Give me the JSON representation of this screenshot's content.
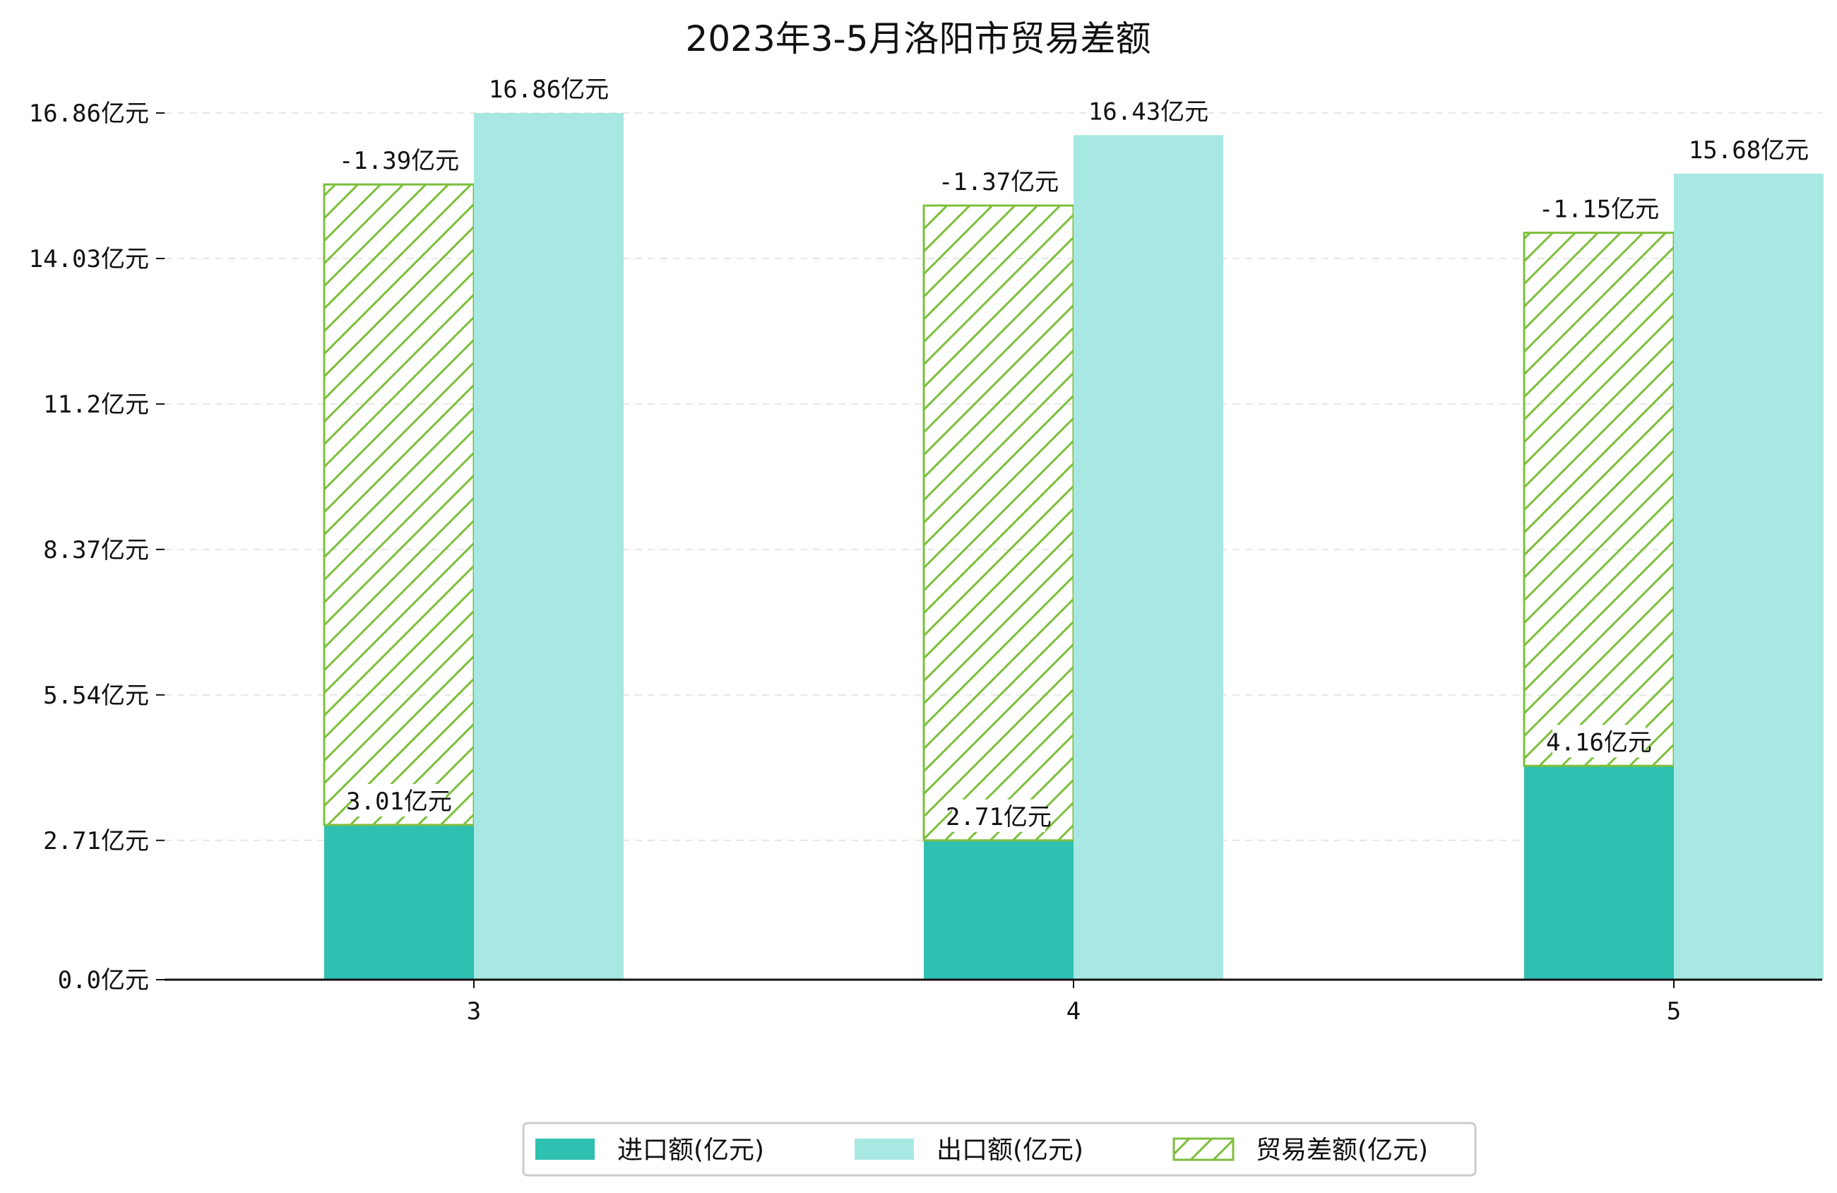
{
  "chart_data": {
    "type": "bar",
    "title": "2023年3-5月洛阳市贸易差额",
    "categories": [
      "3",
      "4",
      "5"
    ],
    "series": [
      {
        "name": "进口额(亿元)",
        "values": [
          3.01,
          2.71,
          4.16
        ],
        "color": "#2EC0B1",
        "labels": [
          "3.01亿元",
          "2.71亿元",
          "4.16亿元"
        ]
      },
      {
        "name": "出口额(亿元)",
        "values": [
          16.86,
          16.43,
          15.68
        ],
        "color": "#A8E8E2",
        "labels": [
          "16.86亿元",
          "16.43亿元",
          "15.68亿元"
        ]
      },
      {
        "name": "贸易差额(亿元)",
        "values": [
          -1.39,
          -1.37,
          -1.15
        ],
        "color": "#7DBF3C",
        "pattern": "hatch",
        "labels": [
          "-1.39亿元",
          "-1.37亿元",
          "-1.15亿元"
        ]
      }
    ],
    "yticks": [
      {
        "value": 0.0,
        "label": "0.0亿元"
      },
      {
        "value": 2.71,
        "label": "2.71亿元"
      },
      {
        "value": 5.54,
        "label": "5.54亿元"
      },
      {
        "value": 8.37,
        "label": "8.37亿元"
      },
      {
        "value": 11.2,
        "label": "11.2亿元"
      },
      {
        "value": 14.03,
        "label": "14.03亿元"
      },
      {
        "value": 16.86,
        "label": "16.86亿元"
      }
    ],
    "ylim": [
      0,
      16.86
    ],
    "grid": true,
    "legend_position": "bottom"
  }
}
